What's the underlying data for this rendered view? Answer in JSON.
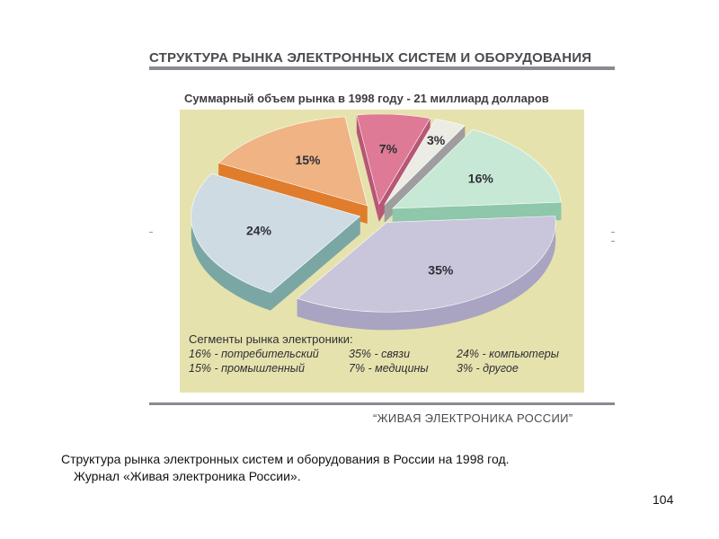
{
  "figure": {
    "title": "СТРУКТУРА РЫНКА ЭЛЕКТРОННЫХ СИСТЕМ И ОБОРУДОВАНИЯ",
    "source": "“ЖИВАЯ ЭЛЕКТРОНИКА РОССИИ”"
  },
  "chart_data": {
    "type": "pie",
    "title": "Суммарный объем рынка в 1998 году - 21 миллиард долларов",
    "slices": [
      {
        "label": "35%",
        "value": 35,
        "segment": "связи",
        "color": "#c9c6db",
        "side": "#a8a4c2"
      },
      {
        "label": "24%",
        "value": 24,
        "segment": "компьютеры",
        "color": "#cfdbe3",
        "side": "#7aa7a4"
      },
      {
        "label": "15%",
        "value": 15,
        "segment": "промышленный",
        "color": "#efb384",
        "side": "#e07d2c"
      },
      {
        "label": "7%",
        "value": 7,
        "segment": "медицины",
        "color": "#de7a95",
        "side": "#b85676"
      },
      {
        "label": "3%",
        "value": 3,
        "segment": "другое",
        "color": "#ecebe4",
        "side": "#9e9e9e"
      },
      {
        "label": "16%",
        "value": 16,
        "segment": "потребительский",
        "color": "#c8e8d6",
        "side": "#8ec7aa"
      }
    ],
    "legend": {
      "title": "Сегменты рынка электроники:",
      "entries": [
        "16% - потребительский",
        "35% - связи",
        "24% - компьютеры",
        "15% - промышленный",
        "7% - медицины",
        "3% - другое"
      ]
    }
  },
  "caption": {
    "line1": "Структура рынка электронных систем и оборудования в России на 1998 год.",
    "line2": "Журнал «Живая электроника России»."
  },
  "page_number": "104"
}
